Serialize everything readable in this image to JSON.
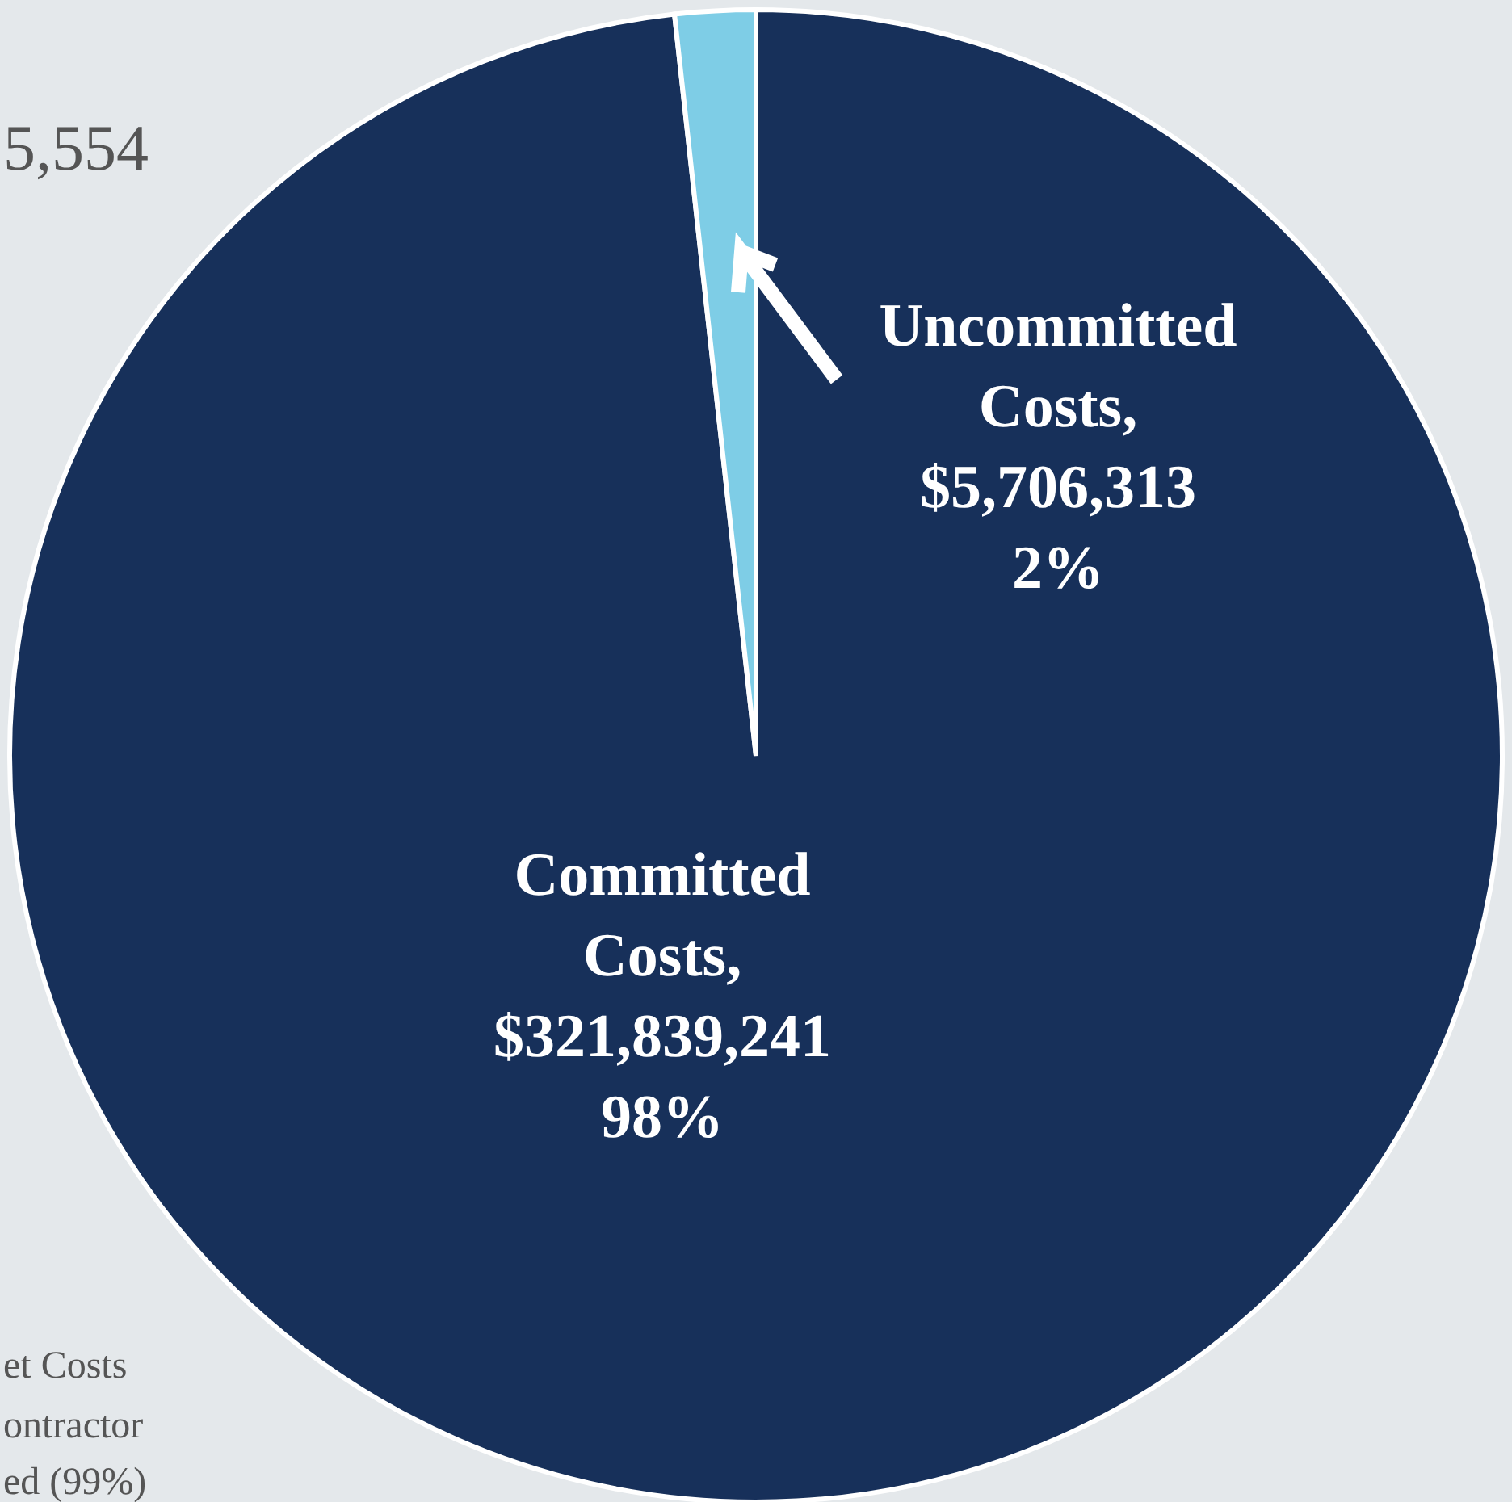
{
  "chart_data": {
    "type": "pie",
    "categories": [
      "Committed Costs",
      "Uncommitted Costs"
    ],
    "values": [
      321839241,
      5706313
    ],
    "colors": [
      "#17305a",
      "#7ecde6"
    ],
    "value_labels": [
      ", $321,839,241 98%",
      ", $5,706,313 2%"
    ],
    "annotations": [
      "5,554",
      "et Costs",
      "ontractor",
      "ed (99%)"
    ]
  }
}
